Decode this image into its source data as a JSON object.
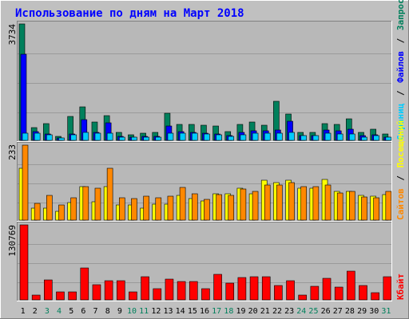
{
  "title": "Использование по дням на Март 2018",
  "colors": {
    "background": "#C0C0C0",
    "plot_bg": "#B8B8B8",
    "title": "#0000FF",
    "hits": "#00805C",
    "files": "#0000FF",
    "pages": "#00CCFF",
    "visits": "#FFFF00",
    "sites": "#FF8800",
    "kbytes": "#FF0000",
    "weekend_day": "#00805C",
    "weekday": "#000000"
  },
  "labels": {
    "hits": "Запросов",
    "files": "Файлов",
    "pages": "Страниц",
    "visits": "Посещений",
    "sites": "Сайтов",
    "kbytes": "Кбайт",
    "sep": "/"
  },
  "chart_data": [
    {
      "type": "bar",
      "panel": "hits-files-pages",
      "ymax_label": "3734",
      "ylim": [
        0,
        3734
      ],
      "categories": [
        "1",
        "2",
        "3",
        "4",
        "5",
        "6",
        "7",
        "8",
        "9",
        "10",
        "11",
        "12",
        "13",
        "14",
        "15",
        "16",
        "17",
        "18",
        "19",
        "20",
        "21",
        "22",
        "23",
        "24",
        "25",
        "26",
        "27",
        "28",
        "29",
        "30",
        "31"
      ],
      "weekend_days": [
        3,
        4,
        10,
        11,
        17,
        18,
        24,
        25,
        31
      ],
      "series": [
        {
          "name": "Запросов",
          "values": [
            3734,
            420,
            530,
            140,
            780,
            1080,
            600,
            800,
            260,
            180,
            230,
            260,
            870,
            520,
            500,
            480,
            460,
            280,
            500,
            600,
            480,
            1260,
            850,
            260,
            260,
            530,
            500,
            680,
            260,
            360,
            200
          ]
        },
        {
          "name": "Файлов",
          "values": [
            2760,
            280,
            210,
            80,
            210,
            670,
            260,
            570,
            120,
            100,
            130,
            130,
            460,
            290,
            250,
            230,
            200,
            150,
            260,
            300,
            300,
            320,
            620,
            160,
            150,
            340,
            310,
            370,
            150,
            180,
            110
          ]
        },
        {
          "name": "Страниц",
          "values": [
            240,
            240,
            190,
            80,
            190,
            260,
            240,
            230,
            110,
            110,
            110,
            110,
            240,
            230,
            230,
            200,
            180,
            130,
            190,
            240,
            240,
            240,
            250,
            160,
            150,
            220,
            210,
            200,
            110,
            150,
            110
          ]
        }
      ]
    },
    {
      "type": "bar",
      "panel": "visits-sites",
      "ymax_label": "233",
      "ylim": [
        0,
        233
      ],
      "categories": [
        "1",
        "2",
        "3",
        "4",
        "5",
        "6",
        "7",
        "8",
        "9",
        "10",
        "11",
        "12",
        "13",
        "14",
        "15",
        "16",
        "17",
        "18",
        "19",
        "20",
        "21",
        "22",
        "23",
        "24",
        "25",
        "26",
        "27",
        "28",
        "29",
        "30",
        "31"
      ],
      "series": [
        {
          "name": "Посещений",
          "values": [
            160,
            36,
            36,
            28,
            54,
            104,
            58,
            104,
            46,
            46,
            36,
            50,
            50,
            78,
            66,
            60,
            82,
            82,
            100,
            82,
            124,
            116,
            124,
            100,
            100,
            126,
            90,
            90,
            76,
            74,
            80
          ]
        },
        {
          "name": "Сайтов",
          "values": [
            233,
            52,
            76,
            46,
            70,
            104,
            98,
            162,
            70,
            66,
            74,
            70,
            74,
            102,
            82,
            64,
            80,
            78,
            96,
            90,
            108,
            110,
            116,
            104,
            104,
            108,
            84,
            88,
            72,
            70,
            88
          ]
        }
      ]
    },
    {
      "type": "bar",
      "panel": "kbytes",
      "ymax_label": "130769",
      "ylim": [
        0,
        130769
      ],
      "categories": [
        "1",
        "2",
        "3",
        "4",
        "5",
        "6",
        "7",
        "8",
        "9",
        "10",
        "11",
        "12",
        "13",
        "14",
        "15",
        "16",
        "17",
        "18",
        "19",
        "20",
        "21",
        "22",
        "23",
        "24",
        "25",
        "26",
        "27",
        "28",
        "29",
        "30",
        "31"
      ],
      "series": [
        {
          "name": "Кбайт",
          "values": [
            130769,
            8000,
            35000,
            14000,
            14000,
            55000,
            27000,
            34000,
            34000,
            14000,
            40000,
            20000,
            36000,
            32000,
            32000,
            19000,
            45000,
            29000,
            39000,
            40000,
            41000,
            25000,
            34000,
            8000,
            23000,
            38000,
            22000,
            50000,
            25000,
            12000,
            40000
          ]
        }
      ]
    }
  ]
}
